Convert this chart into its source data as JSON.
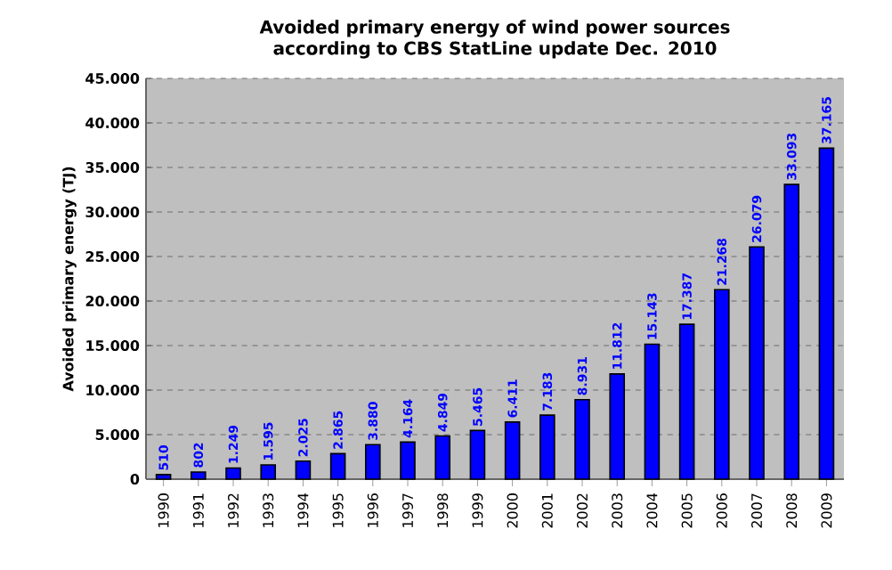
{
  "chart_data": {
    "type": "bar",
    "title": "Avoided primary energy of wind power sources according to CBS StatLine update Dec. 2010",
    "ylabel": "Avoided primary energy (TJ)",
    "categories": [
      "1990",
      "1991",
      "1992",
      "1993",
      "1994",
      "1995",
      "1996",
      "1997",
      "1998",
      "1999",
      "2000",
      "2001",
      "2002",
      "2003",
      "2004",
      "2005",
      "2006",
      "2007",
      "2008",
      "2009"
    ],
    "values": [
      510,
      802,
      1249,
      1595,
      2025,
      2865,
      3880,
      4164,
      4849,
      5465,
      6411,
      7183,
      8931,
      11812,
      15143,
      17387,
      21268,
      26079,
      33093,
      37165
    ],
    "value_labels": [
      "510",
      "802",
      "1.249",
      "1.595",
      "2.025",
      "2.865",
      "3.880",
      "4.164",
      "4.849",
      "5.465",
      "6.411",
      "7.183",
      "8.931",
      "11.812",
      "15.143",
      "17.387",
      "21.268",
      "26.079",
      "33.093",
      "37.165"
    ],
    "color": "#0000ff",
    "ylim": [
      0,
      45000
    ],
    "yticks": [
      0,
      {
        "value": 5000,
        "label": "5.000"
      },
      {
        "value": 10000,
        "label": "10.000"
      },
      {
        "value": 15000,
        "label": "15.000"
      },
      {
        "value": 20000,
        "label": "20.000"
      },
      {
        "value": 25000,
        "label": "25.000"
      },
      {
        "value": 30000,
        "label": "30.000"
      },
      {
        "value": 35000,
        "label": "35.000"
      },
      {
        "value": 40000,
        "label": "40.000"
      },
      {
        "value": 45000,
        "label": "45.000"
      }
    ],
    "grid": "y"
  }
}
